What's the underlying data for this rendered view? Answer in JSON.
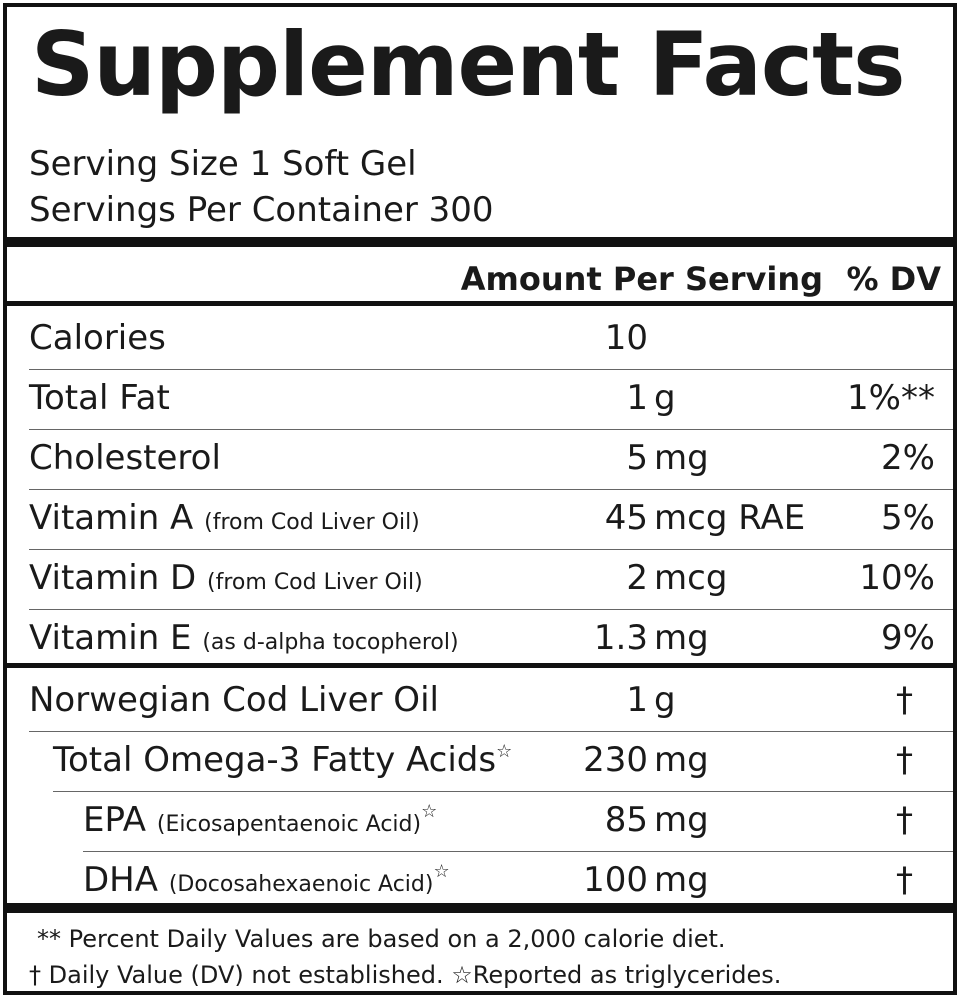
{
  "title": "Supplement Facts",
  "serving_size": "Serving Size 1 Soft Gel",
  "servings_per_container": "Servings Per Container 300",
  "header": {
    "amount": "Amount Per Serving",
    "dv": "% DV"
  },
  "nutrients": [
    {
      "name": "Calories",
      "note": "",
      "amount": "10",
      "unit": "",
      "dv": ""
    },
    {
      "name": "Total Fat",
      "note": "",
      "amount": "1",
      "unit": "g",
      "dv": "1%**"
    },
    {
      "name": "Cholesterol",
      "note": "",
      "amount": "5",
      "unit": "mg",
      "dv": "2%"
    },
    {
      "name": "Vitamin A",
      "note": "(from Cod Liver Oil)",
      "amount": "45",
      "unit": "mcg RAE",
      "dv": "5%"
    },
    {
      "name": "Vitamin D",
      "note": "(from Cod Liver Oil)",
      "amount": "2",
      "unit": "mcg",
      "dv": "10%"
    },
    {
      "name": "Vitamin E",
      "note": "(as d-alpha tocopherol)",
      "amount": "1.3",
      "unit": "mg",
      "dv": "9%"
    }
  ],
  "other": [
    {
      "name": "Norwegian Cod Liver Oil",
      "note": "",
      "star": "",
      "amount": "1",
      "unit": "g",
      "dv": "†"
    },
    {
      "name": "Total Omega-3 Fatty Acids",
      "note": "",
      "star": "☆",
      "amount": "230",
      "unit": "mg",
      "dv": "†"
    },
    {
      "name": "EPA",
      "note": "(Eicosapentaenoic Acid)",
      "star": "☆",
      "amount": "85",
      "unit": "mg",
      "dv": "†"
    },
    {
      "name": "DHA",
      "note": "(Docosahexaenoic Acid)",
      "star": "☆",
      "amount": "100",
      "unit": "mg",
      "dv": "†"
    }
  ],
  "footnotes": {
    "line1": "** Percent Daily Values are based on a 2,000 calorie diet.",
    "line2": "† Daily Value (DV) not established.  ☆Reported as triglycerides."
  }
}
